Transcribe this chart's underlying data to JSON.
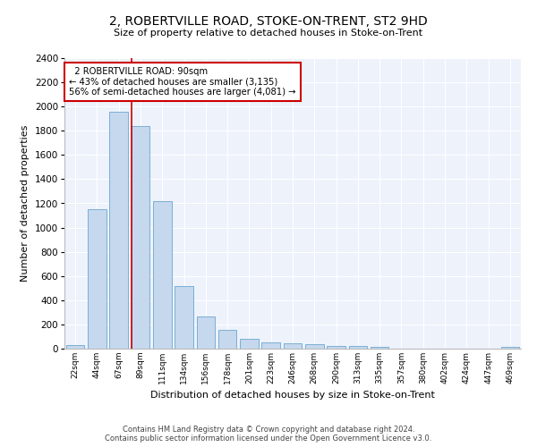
{
  "title": "2, ROBERTVILLE ROAD, STOKE-ON-TRENT, ST2 9HD",
  "subtitle": "Size of property relative to detached houses in Stoke-on-Trent",
  "xlabel": "Distribution of detached houses by size in Stoke-on-Trent",
  "ylabel": "Number of detached properties",
  "annotation_line1": "  2 ROBERTVILLE ROAD: 90sqm",
  "annotation_line2": "← 43% of detached houses are smaller (3,135)",
  "annotation_line3": "56% of semi-detached houses are larger (4,081) →",
  "bar_color": "#c5d8ee",
  "bar_edge_color": "#7bafd4",
  "marker_line_color": "#cc0000",
  "annotation_box_color": "#cc0000",
  "background_color": "#edf2fb",
  "grid_color": "#ffffff",
  "footer_line1": "Contains HM Land Registry data © Crown copyright and database right 2024.",
  "footer_line2": "Contains public sector information licensed under the Open Government Licence v3.0.",
  "bins": [
    "22sqm",
    "44sqm",
    "67sqm",
    "89sqm",
    "111sqm",
    "134sqm",
    "156sqm",
    "178sqm",
    "201sqm",
    "223sqm",
    "246sqm",
    "268sqm",
    "290sqm",
    "313sqm",
    "335sqm",
    "357sqm",
    "380sqm",
    "402sqm",
    "424sqm",
    "447sqm",
    "469sqm"
  ],
  "values": [
    30,
    1150,
    1960,
    1840,
    1215,
    515,
    265,
    155,
    80,
    50,
    45,
    40,
    20,
    20,
    12,
    0,
    0,
    0,
    0,
    0,
    15
  ],
  "ylim": [
    0,
    2400
  ],
  "yticks": [
    0,
    200,
    400,
    600,
    800,
    1000,
    1200,
    1400,
    1600,
    1800,
    2000,
    2200,
    2400
  ]
}
